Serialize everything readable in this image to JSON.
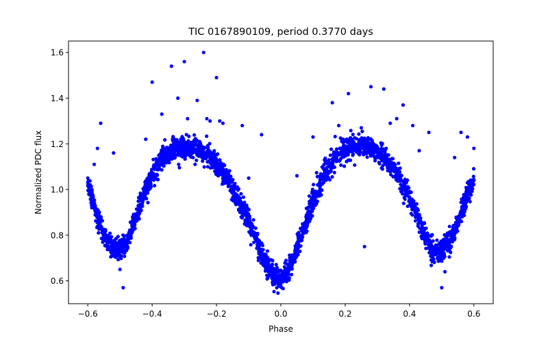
{
  "chart_data": {
    "type": "scatter",
    "title": "TIC 0167890109, period 0.3770 days",
    "xlabel": "Phase",
    "ylabel": "Normalized PDC flux",
    "xlim": [
      -0.66,
      0.66
    ],
    "ylim": [
      0.5,
      1.65
    ],
    "xticks": [
      -0.6,
      -0.4,
      -0.2,
      0.0,
      0.2,
      0.4,
      0.6
    ],
    "xtick_labels": [
      "−0.6",
      "−0.4",
      "−0.2",
      "0.0",
      "0.2",
      "0.4",
      "0.6"
    ],
    "yticks": [
      0.6,
      0.8,
      1.0,
      1.2,
      1.4,
      1.6
    ],
    "ytick_labels": [
      "0.6",
      "0.8",
      "1.0",
      "1.2",
      "1.4",
      "1.6"
    ],
    "grid": false,
    "marker_color": "#0000ff",
    "series": [
      {
        "x": [
          -0.6,
          -0.59,
          -0.58,
          -0.57,
          -0.56,
          -0.55,
          -0.54,
          -0.53,
          -0.52,
          -0.51,
          -0.5,
          -0.49,
          -0.48,
          -0.47,
          -0.46,
          -0.45,
          -0.44,
          -0.43,
          -0.42,
          -0.41,
          -0.4,
          -0.39,
          -0.38,
          -0.37,
          -0.36,
          -0.35,
          -0.34,
          -0.33,
          -0.32,
          -0.31,
          -0.3,
          -0.29,
          -0.28,
          -0.27,
          -0.26,
          -0.25,
          -0.24,
          -0.23,
          -0.22,
          -0.21,
          -0.2,
          -0.19,
          -0.18,
          -0.17,
          -0.16,
          -0.15,
          -0.14,
          -0.13,
          -0.12,
          -0.11,
          -0.1,
          -0.09,
          -0.08,
          -0.07,
          -0.06,
          -0.05,
          -0.04,
          -0.03,
          -0.02,
          -0.01,
          0.0,
          0.01,
          0.02,
          0.03,
          0.04,
          0.05,
          0.06,
          0.07,
          0.08,
          0.09,
          0.1,
          0.11,
          0.12,
          0.13,
          0.14,
          0.15,
          0.16,
          0.17,
          0.18,
          0.19,
          0.2,
          0.21,
          0.22,
          0.23,
          0.24,
          0.25,
          0.26,
          0.27,
          0.28,
          0.29,
          0.3,
          0.31,
          0.32,
          0.33,
          0.34,
          0.35,
          0.36,
          0.37,
          0.38,
          0.39,
          0.4,
          0.41,
          0.42,
          0.43,
          0.44,
          0.45,
          0.46,
          0.47,
          0.48,
          0.49,
          0.5,
          0.51,
          0.52,
          0.53,
          0.54,
          0.55,
          0.56,
          0.57,
          0.58,
          0.59,
          0.6
        ],
        "y": [
          1.03,
          0.98,
          0.93,
          0.88,
          0.84,
          0.8,
          0.77,
          0.75,
          0.74,
          0.74,
          0.74,
          0.75,
          0.77,
          0.8,
          0.84,
          0.88,
          0.92,
          0.96,
          1.0,
          1.03,
          1.06,
          1.09,
          1.11,
          1.13,
          1.15,
          1.16,
          1.17,
          1.18,
          1.18,
          1.18,
          1.18,
          1.18,
          1.18,
          1.18,
          1.17,
          1.17,
          1.16,
          1.15,
          1.14,
          1.12,
          1.11,
          1.09,
          1.07,
          1.05,
          1.03,
          1.0,
          0.98,
          0.95,
          0.92,
          0.89,
          0.86,
          0.82,
          0.79,
          0.75,
          0.72,
          0.69,
          0.66,
          0.64,
          0.62,
          0.61,
          0.61,
          0.62,
          0.64,
          0.67,
          0.7,
          0.74,
          0.78,
          0.82,
          0.86,
          0.9,
          0.94,
          0.98,
          1.02,
          1.05,
          1.08,
          1.1,
          1.12,
          1.14,
          1.16,
          1.17,
          1.18,
          1.18,
          1.19,
          1.19,
          1.19,
          1.19,
          1.19,
          1.18,
          1.18,
          1.17,
          1.16,
          1.15,
          1.14,
          1.13,
          1.11,
          1.09,
          1.07,
          1.05,
          1.02,
          0.99,
          0.96,
          0.93,
          0.9,
          0.86,
          0.82,
          0.79,
          0.76,
          0.74,
          0.73,
          0.73,
          0.73,
          0.74,
          0.76,
          0.79,
          0.82,
          0.86,
          0.9,
          0.94,
          0.98,
          1.01,
          1.04
        ]
      },
      {
        "name": "",
        "x": [
          -0.6,
          -0.58,
          -0.57,
          -0.56,
          -0.52,
          -0.5,
          -0.49,
          -0.42,
          -0.4,
          -0.37,
          -0.34,
          -0.32,
          -0.3,
          -0.29,
          -0.26,
          -0.24,
          -0.23,
          -0.22,
          -0.2,
          -0.19,
          -0.18,
          -0.12,
          -0.1,
          -0.06,
          0.05,
          0.1,
          0.16,
          0.18,
          0.21,
          0.25,
          0.26,
          0.28,
          0.32,
          0.34,
          0.36,
          0.38,
          0.41,
          0.43,
          0.46,
          0.5,
          0.51,
          0.54,
          0.56,
          0.58,
          0.6
        ],
        "y": [
          1.05,
          1.11,
          1.18,
          1.29,
          1.16,
          0.65,
          0.57,
          1.22,
          1.47,
          1.33,
          1.54,
          1.4,
          1.56,
          1.31,
          1.39,
          1.6,
          1.31,
          1.3,
          1.49,
          1.3,
          1.29,
          1.28,
          1.05,
          1.24,
          1.06,
          1.23,
          1.38,
          1.28,
          1.42,
          1.27,
          0.75,
          1.45,
          1.44,
          1.29,
          1.31,
          1.37,
          1.28,
          1.17,
          1.25,
          0.57,
          0.64,
          1.14,
          1.25,
          1.23,
          1.18
        ]
      }
    ]
  }
}
